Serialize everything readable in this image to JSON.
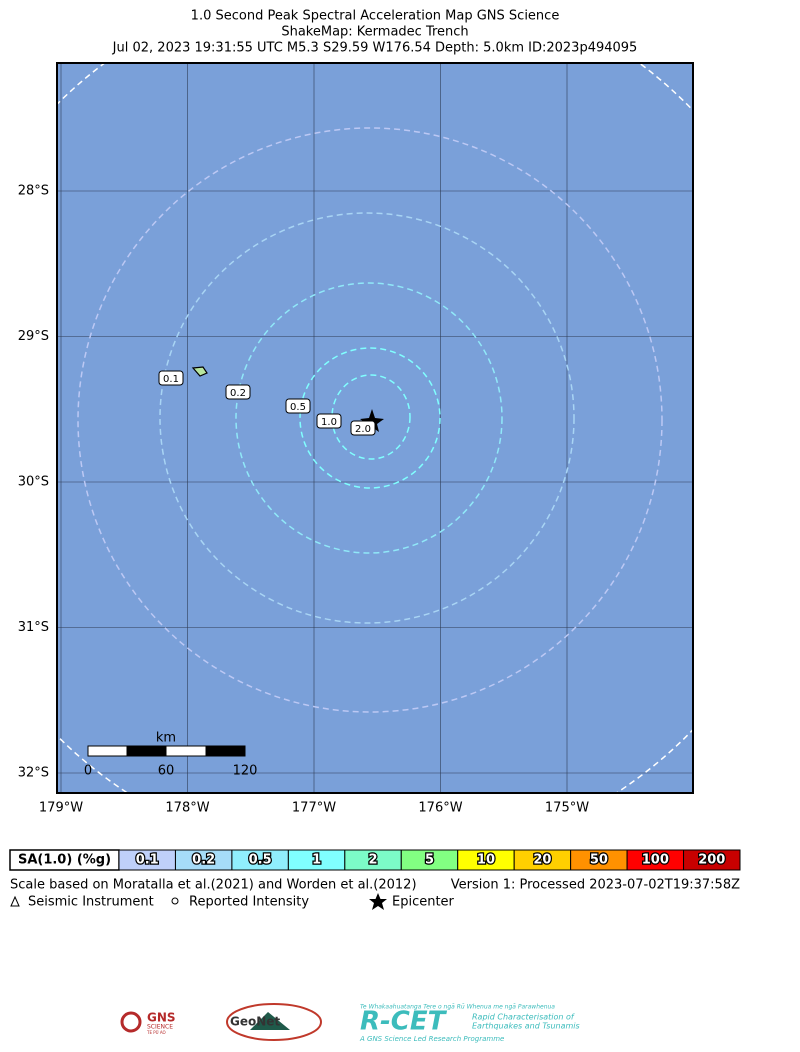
{
  "title": [
    "1.0 Second Peak Spectral Acceleration Map GNS Science",
    "ShakeMap: Kermadec Trench",
    "Jul 02, 2023 19:31:55 UTC M5.3 S29.59 W176.54 Depth: 5.0km ID:2023p494095"
  ],
  "map": {
    "lon_labels": [
      "179°W",
      "178°W",
      "177°W",
      "176°W",
      "175°W"
    ],
    "lat_labels": [
      "28°S",
      "29°S",
      "30°S",
      "31°S",
      "32°S"
    ],
    "contour_labels": [
      "0.1",
      "0.2",
      "0.5",
      "1.0",
      "2.0"
    ],
    "scale_bar": {
      "unit": "km",
      "labels": [
        "0",
        "60",
        "120"
      ]
    }
  },
  "legend": {
    "label": "SA(1.0) (%g)",
    "bins": [
      {
        "label": "0.1",
        "color": "#bfd0fa"
      },
      {
        "label": "0.2",
        "color": "#a6dcf8"
      },
      {
        "label": "0.5",
        "color": "#90eefd"
      },
      {
        "label": "1",
        "color": "#80ffff"
      },
      {
        "label": "2",
        "color": "#7cfcc8"
      },
      {
        "label": "5",
        "color": "#82ff82"
      },
      {
        "label": "10",
        "color": "#ffff00"
      },
      {
        "label": "20",
        "color": "#ffd000"
      },
      {
        "label": "50",
        "color": "#ff9100"
      },
      {
        "label": "100",
        "color": "#ff0000"
      },
      {
        "label": "200",
        "color": "#c80000"
      }
    ]
  },
  "notes": {
    "scale": "Scale based on Moratalla et al.(2021) and Worden et al.(2012)",
    "version": "Version 1: Processed 2023-07-02T19:37:58Z",
    "symbols": [
      "Seismic Instrument",
      "Reported Intensity",
      "Epicenter"
    ]
  },
  "logos": {
    "gns": [
      "GNS",
      "SCIENCE",
      "TE PŪ AO"
    ],
    "geonet": "GeoNet",
    "rcet": [
      "Te Whakaahuatanga Tere o ngā Rū Whenua me ngā Parawhenua",
      "R-CET",
      "Rapid Characterisation of",
      "Earthquakes and Tsunamis",
      "A GNS Science Led Research Programme"
    ]
  }
}
